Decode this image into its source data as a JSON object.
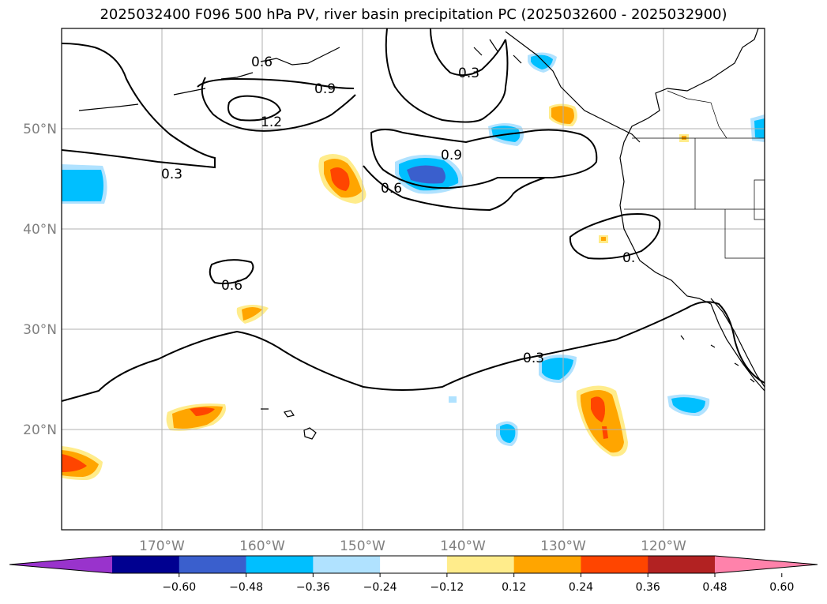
{
  "title": "2025032400 F096 500 hPa PV, river basin precipitation PC (2025032600 - 2025032900)",
  "map": {
    "lat_labels": [
      "50°N",
      "40°N",
      "30°N",
      "20°N"
    ],
    "lon_labels": [
      "170°W",
      "160°W",
      "150°W",
      "140°W",
      "130°W",
      "120°W"
    ],
    "contour_labels": [
      "0.6",
      "0.9",
      "1.2",
      "0.3",
      "0.6",
      "0.9",
      "0.3",
      "0.6",
      "0.3",
      "0."
    ]
  },
  "colorbar": {
    "ticks": [
      "−0.60",
      "−0.48",
      "−0.36",
      "−0.24",
      "−0.12",
      "0.12",
      "0.24",
      "0.36",
      "0.48",
      "0.60"
    ],
    "colors": [
      "#9933cc",
      "#000090",
      "#3a5fcd",
      "#00bfff",
      "#b0e2ff",
      "#ffffff",
      "#ffec8b",
      "#ffa500",
      "#ff4500",
      "#b22222",
      "#ff82ab"
    ]
  }
}
